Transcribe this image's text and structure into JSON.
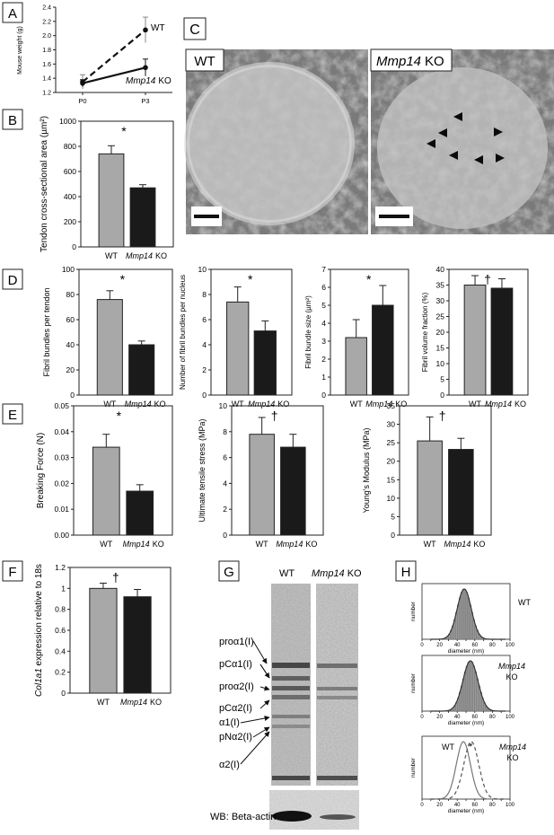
{
  "panels": {
    "A": "A",
    "B": "B",
    "C": "C",
    "D": "D",
    "E": "E",
    "F": "F",
    "G": "G",
    "H": "H"
  },
  "common": {
    "wt": "WT",
    "ko": "Mmp14 KO",
    "ko_italic": "Mmp14",
    "ko_suffix": "KO",
    "star": "*",
    "dagger": "†"
  },
  "colors": {
    "wt_bar": "#a8a8a8",
    "ko_bar": "#1a1a1a",
    "axis": "#222222"
  },
  "panel_a": {
    "ylabel": "Mouse weight (g)",
    "ticks": [
      "1.2",
      "1.4",
      "1.6",
      "1.8",
      "2.0",
      "2.2",
      "2.4"
    ],
    "xticks": [
      "P0",
      "P3"
    ]
  },
  "panel_b": {
    "ylabel": "Tendon cross-sectional area (µm²)",
    "ticks": [
      "0",
      "200",
      "400",
      "600",
      "800",
      "1000"
    ]
  },
  "panel_c": {
    "wt_label": "WT",
    "ko_label_italic": "Mmp14",
    "ko_label_suffix": "KO"
  },
  "panel_d": {
    "d1": {
      "ylabel": "Fibril bundles per tendon",
      "ticks": [
        "0",
        "20",
        "40",
        "60",
        "80",
        "100"
      ]
    },
    "d2": {
      "ylabel": "Number of fibril bundles per nucleus",
      "ticks": [
        "0",
        "2",
        "4",
        "6",
        "8",
        "10"
      ]
    },
    "d3": {
      "ylabel": "Fibril bundle size (µm²)",
      "ticks": [
        "0",
        "1",
        "2",
        "3",
        "4",
        "5",
        "6",
        "7"
      ]
    },
    "d4": {
      "ylabel": "Fibril volume fraction (%)",
      "ticks": [
        "0",
        "5",
        "10",
        "15",
        "20",
        "25",
        "30",
        "35",
        "40"
      ]
    }
  },
  "panel_e": {
    "e1": {
      "ylabel": "Breaking Force (N)",
      "ticks": [
        "0.00",
        "0.01",
        "0.02",
        "0.03",
        "0.04",
        "0.05"
      ]
    },
    "e2": {
      "ylabel": "Ultimate tensile stress (MPa)",
      "ticks": [
        "0",
        "2",
        "4",
        "6",
        "8",
        "10"
      ]
    },
    "e3": {
      "ylabel": "Young's Modulus (MPa)",
      "ticks": [
        "0",
        "5",
        "10",
        "15",
        "20",
        "25",
        "30",
        "35"
      ]
    }
  },
  "panel_f": {
    "ylabel_italic": "Col1a1",
    "ylabel_rest": " expression relative to 18s",
    "ticks": [
      "0",
      "0.2",
      "0.4",
      "0.6",
      "0.8",
      "1",
      "1.2"
    ]
  },
  "panel_g": {
    "labels": [
      "proα1(I)",
      "pCα1(I)",
      "proα2(I)",
      "pCα2(I)",
      "α1(I)",
      "pNα2(I)",
      "α2(I)"
    ],
    "wb": "WB: Beta-actin"
  },
  "panel_h": {
    "ylabel": "number",
    "xlabel": "diameter (nm)",
    "xticks": [
      "0",
      "10",
      "20",
      "30",
      "40",
      "50",
      "60",
      "70",
      "80",
      "90",
      "100"
    ],
    "h1_label": "WT"
  },
  "chart_data": [
    {
      "type": "line",
      "ylabel": "Mouse weight (g)",
      "categories": [
        "P0",
        "P3"
      ],
      "ylim": [
        1.2,
        2.4
      ],
      "series": [
        {
          "name": "WT",
          "values": [
            1.35,
            2.08
          ]
        },
        {
          "name": "Mmp14 KO",
          "values": [
            1.33,
            1.55
          ]
        }
      ]
    },
    {
      "type": "bar",
      "ylabel": "Tendon cross-sectional area (µm²)",
      "categories": [
        "WT",
        "Mmp14 KO"
      ],
      "values": [
        740,
        470
      ],
      "errors": [
        65,
        25
      ],
      "ylim": [
        0,
        1000
      ]
    },
    {
      "type": "bar",
      "ylabel": "Fibril bundles per tendon",
      "categories": [
        "WT",
        "Mmp14 KO"
      ],
      "values": [
        76,
        40
      ],
      "errors": [
        7,
        3
      ],
      "ylim": [
        0,
        100
      ]
    },
    {
      "type": "bar",
      "ylabel": "Number of fibril bundles per nucleus",
      "categories": [
        "WT",
        "Mmp14 KO"
      ],
      "values": [
        7.4,
        5.1
      ],
      "errors": [
        1.2,
        0.8
      ],
      "ylim": [
        0,
        10
      ]
    },
    {
      "type": "bar",
      "ylabel": "Fibril bundle size (µm²)",
      "categories": [
        "WT",
        "Mmp14 KO"
      ],
      "values": [
        3.2,
        5.0
      ],
      "errors": [
        1.0,
        1.1
      ],
      "ylim": [
        0,
        7
      ]
    },
    {
      "type": "bar",
      "ylabel": "Fibril volume fraction (%)",
      "categories": [
        "WT",
        "Mmp14 KO"
      ],
      "values": [
        35,
        34
      ],
      "errors": [
        3,
        3
      ],
      "ylim": [
        0,
        40
      ]
    },
    {
      "type": "bar",
      "ylabel": "Breaking Force (N)",
      "categories": [
        "WT",
        "Mmp14 KO"
      ],
      "values": [
        0.034,
        0.017
      ],
      "errors": [
        0.005,
        0.0025
      ],
      "ylim": [
        0,
        0.05
      ]
    },
    {
      "type": "bar",
      "ylabel": "Ultimate tensile stress (MPa)",
      "categories": [
        "WT",
        "Mmp14 KO"
      ],
      "values": [
        7.8,
        6.8
      ],
      "errors": [
        1.3,
        1.0
      ],
      "ylim": [
        0,
        10
      ]
    },
    {
      "type": "bar",
      "ylabel": "Young's Modulus (MPa)",
      "categories": [
        "WT",
        "Mmp14 KO"
      ],
      "values": [
        25.5,
        23.2
      ],
      "errors": [
        6.5,
        3.0
      ],
      "ylim": [
        0,
        35
      ]
    },
    {
      "type": "bar",
      "ylabel": "Col1a1 expression relative to 18s",
      "categories": [
        "WT",
        "Mmp14 KO"
      ],
      "values": [
        1.0,
        0.92
      ],
      "errors": [
        0.05,
        0.07
      ],
      "ylim": [
        0,
        1.2
      ]
    }
  ]
}
